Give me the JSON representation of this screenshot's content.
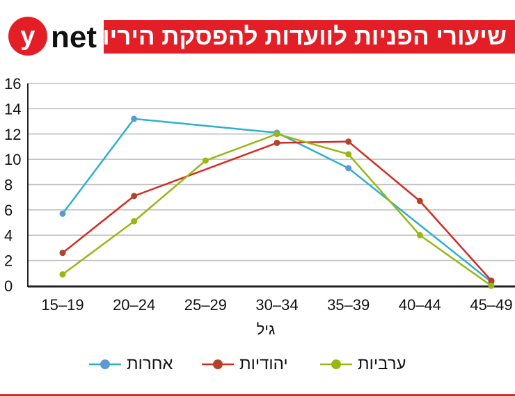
{
  "header": {
    "title": "שיעורי הפניות לוועדות להפסקת היריון",
    "logo_text": "ynet",
    "brand_color": "#e41e26"
  },
  "chart_data": {
    "type": "line",
    "title": "שיעורי הפניות לוועדות להפסקת היריון",
    "xlabel": "גיל",
    "ylabel": "",
    "categories": [
      "15-19",
      "20-24",
      "25-29",
      "30-34",
      "35-39",
      "40-44",
      "45-49"
    ],
    "ylim": [
      0,
      16
    ],
    "yticks": [
      0,
      2,
      4,
      6,
      8,
      10,
      12,
      14,
      16
    ],
    "grid": true,
    "legend": "bottom",
    "series": [
      {
        "name": "אחרות",
        "color": "#2eaed0",
        "marker_color": "#5b9bd5",
        "values": [
          5.7,
          13.2,
          null,
          12.1,
          9.3,
          null,
          0.3
        ]
      },
      {
        "name": "יהודיות",
        "color": "#d42a1e",
        "marker_color": "#b5412a",
        "values": [
          2.6,
          7.1,
          null,
          11.3,
          11.4,
          6.7,
          0.4
        ]
      },
      {
        "name": "ערביות",
        "color": "#97b713",
        "marker_color": "#97b713",
        "values": [
          0.9,
          5.1,
          9.9,
          12.0,
          10.4,
          4.0,
          0.0
        ]
      }
    ]
  }
}
